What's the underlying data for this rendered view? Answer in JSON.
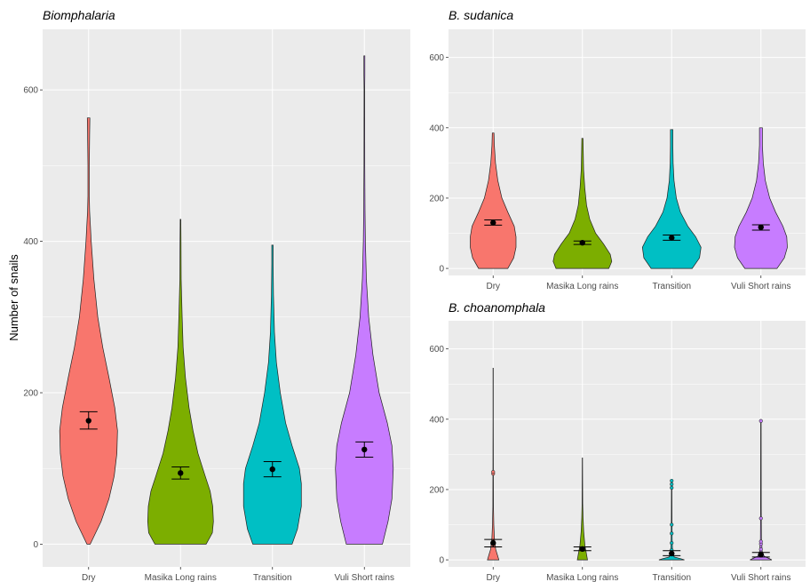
{
  "y_axis_label": "Number of snails",
  "colors": {
    "Dry": "#F8766D",
    "Masika Long rains": "#7CAE00",
    "Transition": "#00BFC4",
    "Vuli Short rains": "#C77CFF",
    "panel_bg": "#EBEBEB",
    "grid": "#FFFFFF"
  },
  "chart_data": [
    {
      "type": "violin",
      "title": "Biomphalaria",
      "xlabel": "",
      "ylabel": "Number of snails",
      "ylim": [
        -30,
        680
      ],
      "yticks": [
        0,
        200,
        400,
        600
      ],
      "grid": true,
      "legend": "none",
      "categories": [
        "Dry",
        "Masika Long rains",
        "Transition",
        "Vuli Short rains"
      ],
      "series": [
        {
          "category": "Dry",
          "max": 563,
          "mean": 163,
          "ci_low": 152,
          "ci_high": 175,
          "density": [
            [
              0,
              0.05
            ],
            [
              30,
              0.38
            ],
            [
              60,
              0.62
            ],
            [
              90,
              0.78
            ],
            [
              120,
              0.86
            ],
            [
              150,
              0.88
            ],
            [
              180,
              0.8
            ],
            [
              220,
              0.62
            ],
            [
              260,
              0.43
            ],
            [
              300,
              0.28
            ],
            [
              350,
              0.16
            ],
            [
              400,
              0.08
            ],
            [
              440,
              0.03
            ],
            [
              460,
              0.02
            ],
            [
              500,
              0.02
            ],
            [
              540,
              0.03
            ],
            [
              563,
              0.04
            ]
          ]
        },
        {
          "category": "Masika Long rains",
          "max": 429,
          "mean": 94,
          "ci_low": 86,
          "ci_high": 102,
          "density": [
            [
              0,
              0.78
            ],
            [
              15,
              0.97
            ],
            [
              30,
              1.0
            ],
            [
              50,
              0.98
            ],
            [
              70,
              0.9
            ],
            [
              90,
              0.75
            ],
            [
              120,
              0.53
            ],
            [
              150,
              0.38
            ],
            [
              180,
              0.26
            ],
            [
              220,
              0.15
            ],
            [
              260,
              0.08
            ],
            [
              300,
              0.05
            ],
            [
              350,
              0.02
            ],
            [
              400,
              0.015
            ],
            [
              429,
              0.01
            ]
          ]
        },
        {
          "category": "Transition",
          "max": 395,
          "mean": 99,
          "ci_low": 89,
          "ci_high": 109,
          "density": [
            [
              0,
              0.6
            ],
            [
              20,
              0.76
            ],
            [
              50,
              0.88
            ],
            [
              80,
              0.88
            ],
            [
              100,
              0.82
            ],
            [
              130,
              0.6
            ],
            [
              160,
              0.4
            ],
            [
              200,
              0.24
            ],
            [
              240,
              0.12
            ],
            [
              280,
              0.06
            ],
            [
              330,
              0.03
            ],
            [
              370,
              0.02
            ],
            [
              395,
              0.02
            ]
          ]
        },
        {
          "category": "Vuli Short rains",
          "max": 645,
          "mean": 125,
          "ci_low": 115,
          "ci_high": 135,
          "density": [
            [
              0,
              0.55
            ],
            [
              30,
              0.72
            ],
            [
              60,
              0.84
            ],
            [
              100,
              0.88
            ],
            [
              130,
              0.84
            ],
            [
              160,
              0.7
            ],
            [
              200,
              0.45
            ],
            [
              250,
              0.26
            ],
            [
              300,
              0.13
            ],
            [
              350,
              0.06
            ],
            [
              400,
              0.03
            ],
            [
              440,
              0.02
            ],
            [
              500,
              0.012
            ],
            [
              600,
              0.01
            ],
            [
              620,
              0.015
            ],
            [
              645,
              0.015
            ]
          ]
        }
      ]
    },
    {
      "type": "violin",
      "title": "B. sudanica",
      "xlabel": "",
      "ylabel": "",
      "ylim": [
        -20,
        680
      ],
      "yticks": [
        0,
        200,
        400,
        600
      ],
      "grid": true,
      "legend": "none",
      "categories": [
        "Dry",
        "Masika Long rains",
        "Transition",
        "Vuli Short rains"
      ],
      "series": [
        {
          "category": "Dry",
          "max": 385,
          "mean": 130,
          "ci_low": 123,
          "ci_high": 138,
          "density": [
            [
              0,
              0.5
            ],
            [
              30,
              0.7
            ],
            [
              60,
              0.78
            ],
            [
              90,
              0.78
            ],
            [
              120,
              0.72
            ],
            [
              160,
              0.5
            ],
            [
              200,
              0.3
            ],
            [
              250,
              0.16
            ],
            [
              300,
              0.08
            ],
            [
              350,
              0.04
            ],
            [
              385,
              0.03
            ]
          ]
        },
        {
          "category": "Masika Long rains",
          "max": 370,
          "mean": 73,
          "ci_low": 68,
          "ci_high": 78,
          "density": [
            [
              0,
              0.9
            ],
            [
              20,
              1.0
            ],
            [
              40,
              0.95
            ],
            [
              70,
              0.72
            ],
            [
              100,
              0.45
            ],
            [
              140,
              0.25
            ],
            [
              180,
              0.14
            ],
            [
              230,
              0.08
            ],
            [
              280,
              0.04
            ],
            [
              330,
              0.03
            ],
            [
              370,
              0.02
            ]
          ]
        },
        {
          "category": "Transition",
          "max": 395,
          "mean": 87,
          "ci_low": 80,
          "ci_high": 95,
          "density": [
            [
              0,
              0.7
            ],
            [
              30,
              0.95
            ],
            [
              60,
              1.0
            ],
            [
              90,
              0.82
            ],
            [
              120,
              0.55
            ],
            [
              160,
              0.3
            ],
            [
              200,
              0.16
            ],
            [
              250,
              0.08
            ],
            [
              300,
              0.05
            ],
            [
              350,
              0.04
            ],
            [
              395,
              0.04
            ]
          ]
        },
        {
          "category": "Vuli Short rains",
          "max": 400,
          "mean": 117,
          "ci_low": 109,
          "ci_high": 124,
          "density": [
            [
              0,
              0.55
            ],
            [
              30,
              0.8
            ],
            [
              60,
              0.9
            ],
            [
              90,
              0.88
            ],
            [
              120,
              0.75
            ],
            [
              160,
              0.5
            ],
            [
              200,
              0.3
            ],
            [
              250,
              0.15
            ],
            [
              300,
              0.08
            ],
            [
              350,
              0.05
            ],
            [
              400,
              0.05
            ]
          ]
        }
      ]
    },
    {
      "type": "violin",
      "title": "B. choanomphala",
      "xlabel": "",
      "ylabel": "",
      "ylim": [
        -20,
        680
      ],
      "yticks": [
        0,
        200,
        400,
        600
      ],
      "grid": true,
      "legend": "none",
      "categories": [
        "Dry",
        "Masika Long rains",
        "Transition",
        "Vuli Short rains"
      ],
      "series": [
        {
          "category": "Dry",
          "max": 545,
          "mean": 48,
          "ci_low": 37,
          "ci_high": 58,
          "density": [
            [
              0,
              0.18
            ],
            [
              15,
              0.13
            ],
            [
              30,
              0.08
            ],
            [
              60,
              0.04
            ],
            [
              100,
              0.02
            ],
            [
              150,
              0.01
            ],
            [
              250,
              0.008
            ],
            [
              400,
              0.005
            ],
            [
              545,
              0.004
            ]
          ],
          "outliers": [
            245,
            250
          ]
        },
        {
          "category": "Masika Long rains",
          "max": 290,
          "mean": 31,
          "ci_low": 26,
          "ci_high": 37,
          "density": [
            [
              0,
              0.16
            ],
            [
              20,
              0.12
            ],
            [
              40,
              0.08
            ],
            [
              80,
              0.04
            ],
            [
              120,
              0.02
            ],
            [
              160,
              0.01
            ],
            [
              220,
              0.008
            ],
            [
              290,
              0.005
            ]
          ],
          "outliers": []
        },
        {
          "category": "Transition",
          "max": 225,
          "mean": 18,
          "ci_low": 12,
          "ci_high": 26,
          "density": [
            [
              0,
              0.4
            ],
            [
              3,
              0.3
            ],
            [
              8,
              0.08
            ],
            [
              20,
              0.03
            ],
            [
              60,
              0.015
            ],
            [
              120,
              0.01
            ],
            [
              225,
              0.008
            ]
          ],
          "outliers": [
            20,
            28,
            48,
            75,
            100,
            205,
            215,
            225
          ]
        },
        {
          "category": "Vuli Short rains",
          "max": 395,
          "mean": 15,
          "ci_low": 8,
          "ci_high": 21,
          "density": [
            [
              0,
              0.34
            ],
            [
              4,
              0.25
            ],
            [
              10,
              0.1
            ],
            [
              25,
              0.04
            ],
            [
              60,
              0.015
            ],
            [
              150,
              0.01
            ],
            [
              395,
              0.008
            ]
          ],
          "outliers": [
            20,
            30,
            45,
            52,
            118,
            395
          ]
        }
      ]
    }
  ]
}
